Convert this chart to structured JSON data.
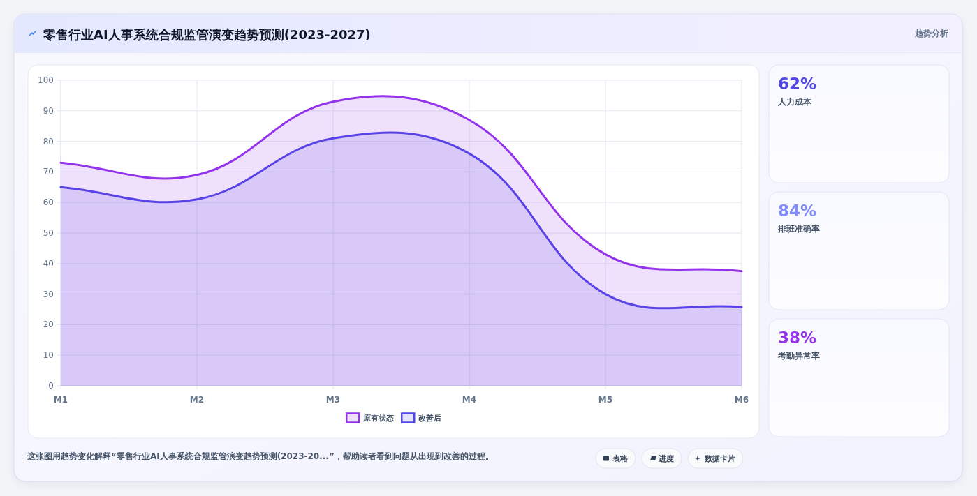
{
  "chart_data": [
    {
      "type": "area",
      "title": "零售行业AI人事系统合规监管演变趋势预测(2023-2027)",
      "categories": [
        "M1",
        "M2",
        "M3",
        "M4",
        "M5",
        "M6"
      ],
      "series": [
        {
          "name": "原有状态",
          "color": "#9333ea",
          "values": [
            73,
            69,
            93,
            87,
            43,
            37.5
          ]
        },
        {
          "name": "改善后",
          "color": "#4f46e5",
          "values": [
            65,
            61,
            81,
            76,
            30,
            25.7
          ]
        }
      ],
      "ylim": [
        0,
        100
      ],
      "yticks": [
        0,
        10,
        20,
        30,
        40,
        50,
        60,
        70,
        80,
        90,
        100
      ],
      "grid": true,
      "legend": "bottom",
      "line_style": "solid",
      "annotations": [
        "趋势分析",
        "这张图用趋势变化解释“零售行业AI人事系统合规监管演变趋势预测(2023-20...”，帮助读者看到问题从出现到改善的过程。",
        "表格",
        "进度",
        "数据卡片"
      ]
    },
    {
      "type": "other",
      "annotations": [
        "62%",
        "人力成本",
        "84%",
        "排班准确率",
        "38%",
        "考勤异常率"
      ]
    }
  ]
}
